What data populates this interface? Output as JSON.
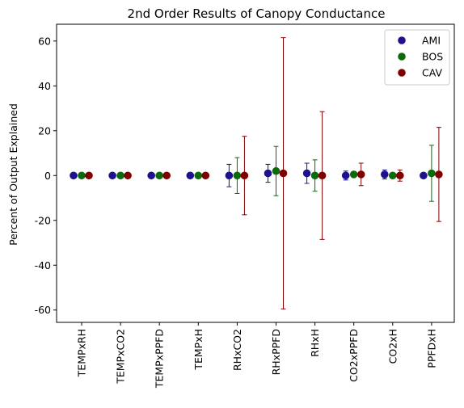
{
  "chart_data": {
    "type": "scatter",
    "title": "2nd Order Results of Canopy Conductance",
    "xlabel": "",
    "ylabel": "Percent of Output Explained",
    "categories": [
      "TEMPxRH",
      "TEMPxCO2",
      "TEMPxPPFD",
      "TEMPxH",
      "RHxCO2",
      "RHxPPFD",
      "RHxH",
      "CO2xPPFD",
      "CO2xH",
      "PPFDxH"
    ],
    "ylim": [
      -65.5,
      67.5
    ],
    "yticks": [
      "-60",
      "-40",
      "-20",
      "0",
      "20",
      "40",
      "60"
    ],
    "legend_position": "top-right",
    "series": [
      {
        "name": "AMI",
        "color": "#1f1090",
        "values": [
          0,
          0,
          0,
          0,
          0,
          1,
          1,
          0,
          0.5,
          0
        ],
        "error": [
          0,
          0,
          0,
          0,
          5,
          4,
          4.5,
          2,
          2,
          0
        ]
      },
      {
        "name": "BOS",
        "color": "#0a6b0a",
        "values": [
          0,
          0,
          0,
          0,
          0,
          2,
          0,
          0.5,
          0,
          1
        ],
        "error": [
          0,
          0,
          0,
          0,
          8,
          11,
          7,
          1,
          1,
          12.5
        ]
      },
      {
        "name": "CAV",
        "color": "#800000",
        "values": [
          0,
          0,
          0,
          0,
          0,
          1,
          0,
          0.5,
          0,
          0.5
        ],
        "error": [
          0,
          0,
          0,
          0,
          17.5,
          60.5,
          28.5,
          5,
          2.5,
          21
        ]
      }
    ]
  }
}
